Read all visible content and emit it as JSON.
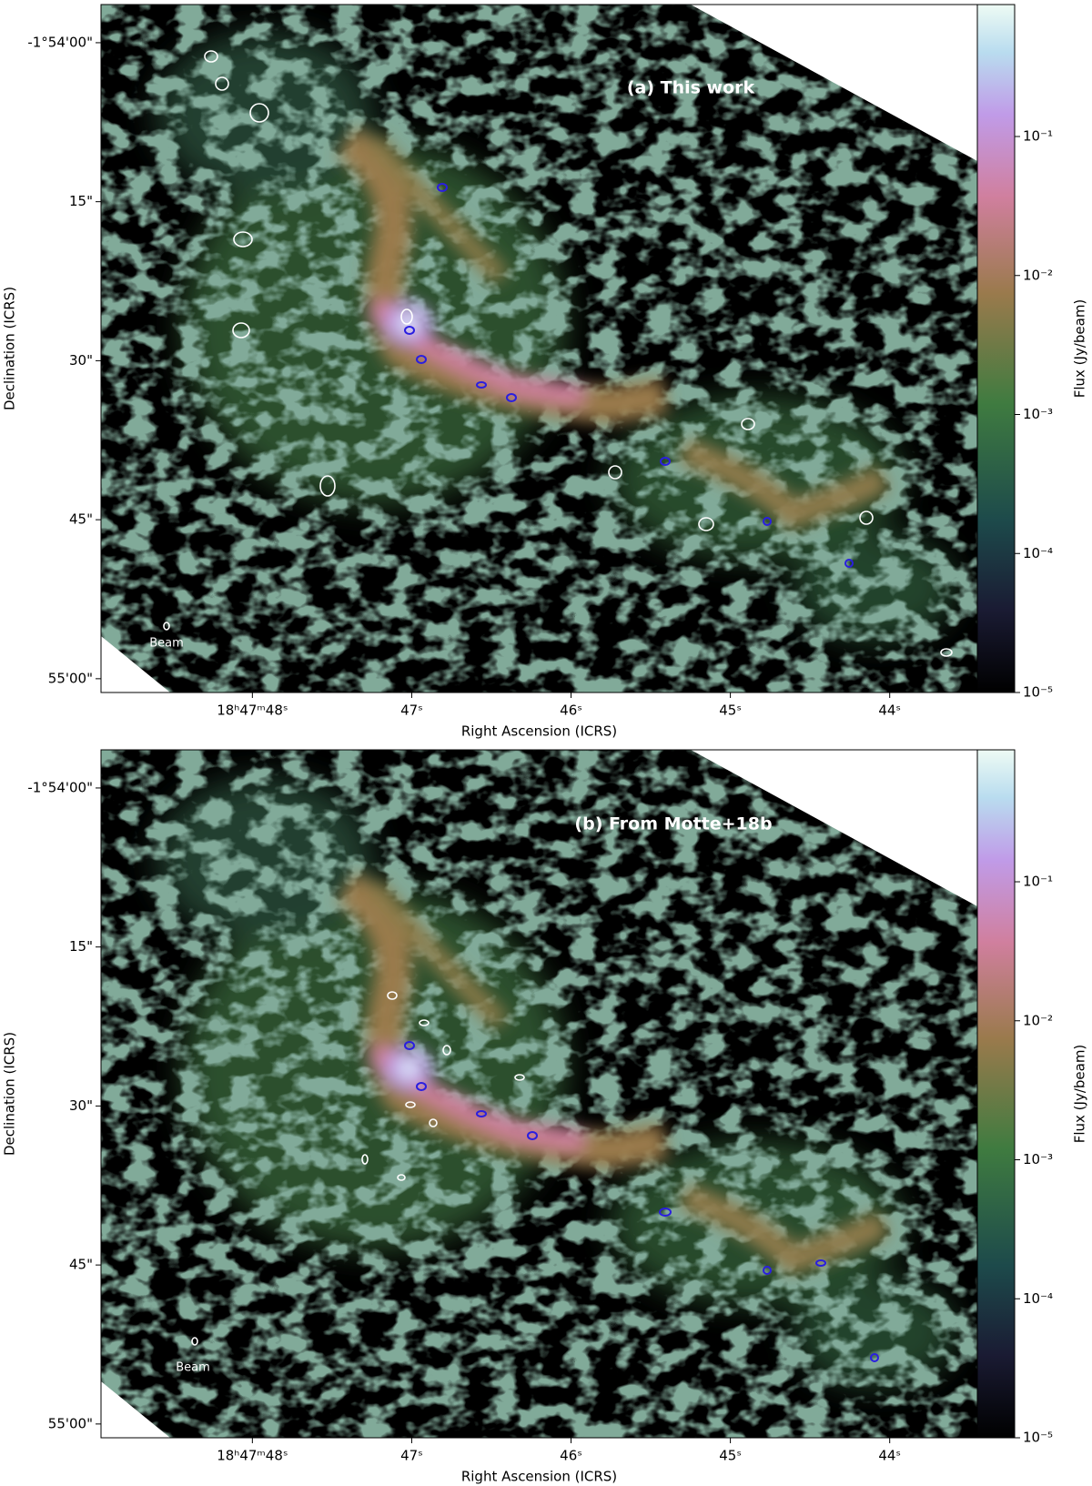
{
  "chart_data": [
    {
      "type": "image",
      "title": "(a) This work",
      "xlabel": "Right Ascension (ICRS)",
      "ylabel": "Declination (ICRS)",
      "colorbar_label": "Flux (Jy/beam)",
      "annotation": "Beam",
      "xlim": [
        48.95,
        43.45
      ],
      "xticks": [
        {
          "value": 48,
          "label": "18ʰ47ᵐ48ˢ"
        },
        {
          "value": 47,
          "label": "47ˢ"
        },
        {
          "value": 46,
          "label": "46ˢ"
        },
        {
          "value": 45,
          "label": "45ˢ"
        },
        {
          "value": 44,
          "label": "44ˢ"
        }
      ],
      "ylim": [
        61.3,
        -3.6
      ],
      "yticks": [
        {
          "value": 0,
          "label": "-1°54'00\""
        },
        {
          "value": 15,
          "label": "15\""
        },
        {
          "value": 30,
          "label": "30\""
        },
        {
          "value": 45,
          "label": "45\""
        },
        {
          "value": 60,
          "label": "55'00\""
        }
      ],
      "clim": [
        1e-05,
        0.89
      ],
      "log_colorbar": true,
      "cticks": [
        {
          "value": 1e-05,
          "label": "10⁻⁵"
        },
        {
          "value": 0.0001,
          "label": "10⁻⁴"
        },
        {
          "value": 0.001,
          "label": "10⁻³"
        },
        {
          "value": 0.01,
          "label": "10⁻²"
        },
        {
          "value": 0.1,
          "label": "10⁻¹"
        }
      ]
    },
    {
      "type": "image",
      "title": "(b) From Motte+18b",
      "xlabel": "Right Ascension (ICRS)",
      "ylabel": "Declination (ICRS)",
      "colorbar_label": "Flux (Jy/beam)",
      "annotation": "Beam",
      "xlim": [
        48.95,
        43.45
      ],
      "xticks": [
        {
          "value": 48,
          "label": "18ʰ47ᵐ48ˢ"
        },
        {
          "value": 47,
          "label": "47ˢ"
        },
        {
          "value": 46,
          "label": "46ˢ"
        },
        {
          "value": 45,
          "label": "45ˢ"
        },
        {
          "value": 44,
          "label": "44ˢ"
        }
      ],
      "ylim": [
        61.3,
        -3.6
      ],
      "yticks": [
        {
          "value": 0,
          "label": "-1°54'00\""
        },
        {
          "value": 15,
          "label": "15\""
        },
        {
          "value": 30,
          "label": "30\""
        },
        {
          "value": 45,
          "label": "45\""
        },
        {
          "value": 60,
          "label": "55'00\""
        }
      ],
      "clim": [
        1e-05,
        0.89
      ],
      "log_colorbar": true,
      "cticks": [
        {
          "value": 1e-05,
          "label": "10⁻⁵"
        },
        {
          "value": 0.0001,
          "label": "10⁻⁴"
        },
        {
          "value": 0.001,
          "label": "10⁻³"
        },
        {
          "value": 0.01,
          "label": "10⁻²"
        },
        {
          "value": 0.1,
          "label": "10⁻¹"
        }
      ]
    }
  ]
}
